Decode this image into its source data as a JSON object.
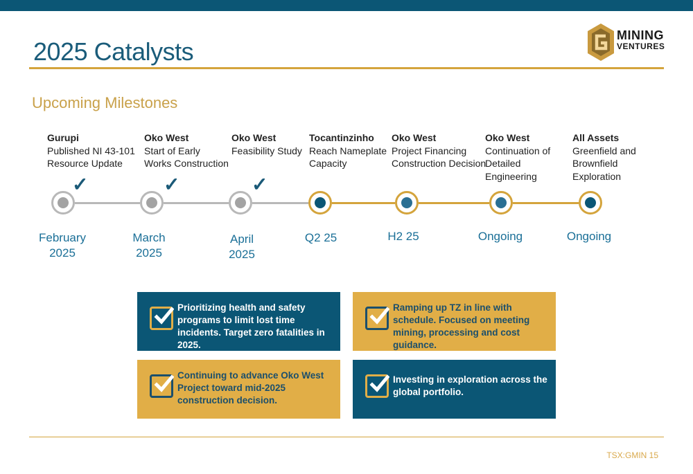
{
  "title": "2025 Catalysts",
  "subtitle": "Upcoming Milestones",
  "logo": {
    "line1": "MINING",
    "line2": "VENTURES",
    "icon": "g-hexagon-logo"
  },
  "milestones": [
    {
      "heading": "Gurupi",
      "desc": "Published NI 43-101\nResource Update",
      "date": "February\n2025",
      "status": "done"
    },
    {
      "heading": "Oko West",
      "desc": "Start of Early\nWorks Construction",
      "date": "March\n2025",
      "status": "done"
    },
    {
      "heading": "Oko West",
      "desc": "Feasibility Study",
      "date": "April\n2025",
      "status": "done"
    },
    {
      "heading": "Tocantinzinho",
      "desc": "Reach Nameplate\nCapacity",
      "date": "Q2 25",
      "status": "upcoming"
    },
    {
      "heading": "Oko West",
      "desc": "Project Financing\nConstruction Decision",
      "date": "H2 25",
      "status": "upcoming"
    },
    {
      "heading": "Oko West",
      "desc": "Continuation of\nDetailed\nEngineering",
      "date": "Ongoing",
      "status": "upcoming"
    },
    {
      "heading": "All Assets",
      "desc": "Greenfield and\nBrownfield\nExploration",
      "date": "Ongoing",
      "status": "upcoming"
    }
  ],
  "check_glyph": "✓",
  "boxes": [
    {
      "text": "Prioritizing health and safety programs to limit lost time incidents. Target zero fatalities in 2025.",
      "style": "teal"
    },
    {
      "text": "Ramping up TZ in line with schedule. Focused on meeting mining, processing and cost guidance.",
      "style": "gold"
    },
    {
      "text": "Continuing to advance Oko West Project toward mid-2025 construction decision.",
      "style": "gold"
    },
    {
      "text": "Investing in exploration across the global portfolio.",
      "style": "teal"
    }
  ],
  "footer": "TSX:GMIN 15",
  "colors": {
    "teal": "#0b5675",
    "gold": "#e1ae47",
    "accent_line": "#d4a43c",
    "done_gray": "#a3a3a3"
  }
}
